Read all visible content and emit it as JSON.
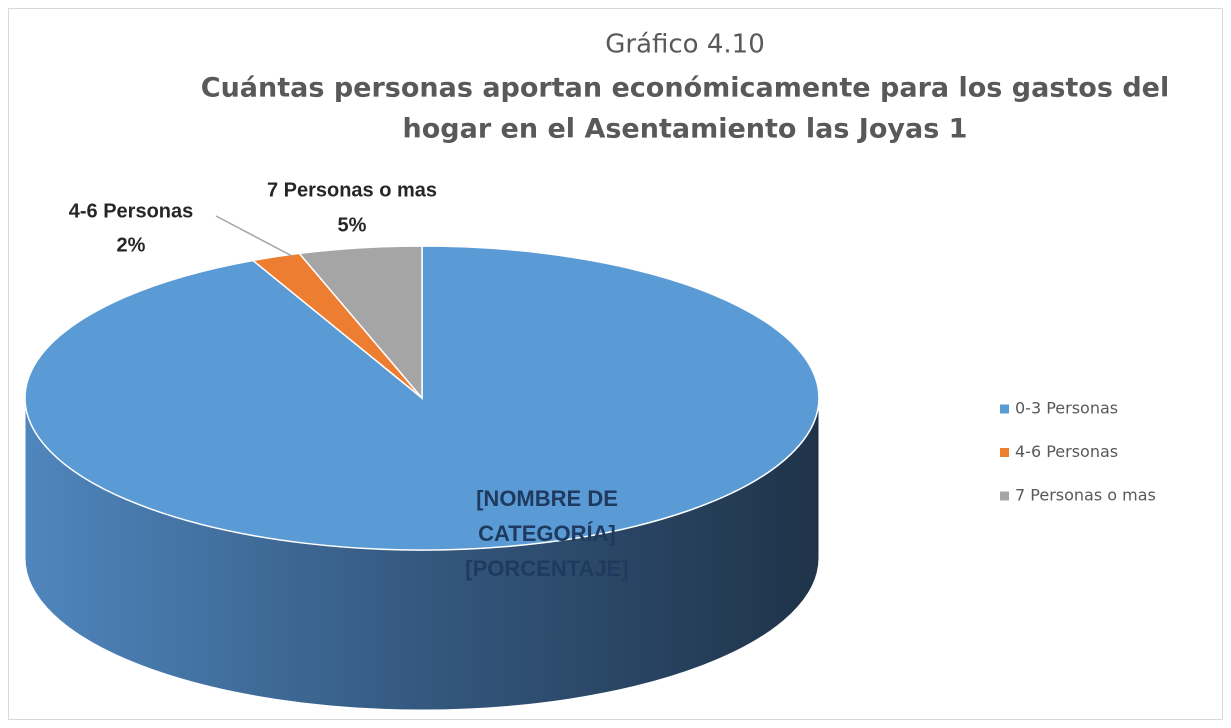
{
  "chart_data": {
    "type": "pie",
    "title": "Gráfico 4.10",
    "subtitle": [
      "Cuántas personas aportan económicamente para los gastos del",
      "hogar en el Asentamiento las Joyas 1"
    ],
    "categories": [
      "0-3 Personas",
      "4-6 Personas",
      "7 Personas o mas"
    ],
    "values": [
      93,
      2,
      5
    ],
    "value_labels": [
      null,
      "2%",
      "5%"
    ],
    "colors": [
      "#5b9bd5",
      "#ed7d31",
      "#a5a5a5"
    ],
    "placeholder_label": [
      "[NOMBRE DE",
      "CATEGORÍA]",
      "[PORCENTAJE]"
    ],
    "legend": "right"
  }
}
